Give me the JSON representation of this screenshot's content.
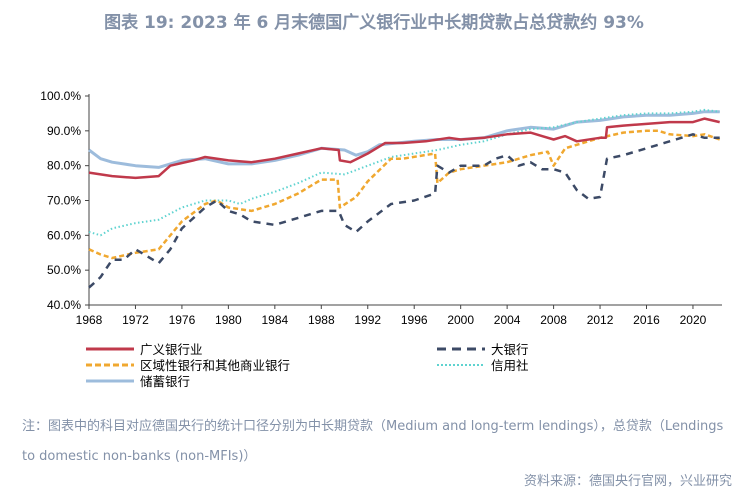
{
  "title": "图表 19: 2023 年 6 月末德国广义银行业中长期贷款占总贷款约 93%",
  "note": "注：图表中的科目对应德国央行的统计口径分别为中长期贷款（Medium and long-term lendings），总贷款（Lendings to domestic non-banks (non-MFIs)）",
  "source": "资料来源：德国央行官网，兴业研究",
  "chart_data": {
    "type": "line",
    "title": "图表 19: 2023 年 6 月末德国广义银行业中长期贷款占总贷款约 93%",
    "xlabel": "",
    "ylabel": "",
    "xlim": [
      1968,
      2022.5
    ],
    "ylim": [
      40,
      100
    ],
    "xticks": [
      "1968",
      "1972",
      "1976",
      "1980",
      "1984",
      "1988",
      "1992",
      "1996",
      "2000",
      "2004",
      "2008",
      "2012",
      "2016",
      "2020"
    ],
    "yticks": [
      "40.0%",
      "50.0%",
      "60.0%",
      "70.0%",
      "80.0%",
      "90.0%",
      "100.0%"
    ],
    "grid": false,
    "legend_position": "bottom",
    "series": [
      {
        "name": "广义银行业",
        "color": "#c0394b",
        "style": "solid",
        "x": [
          1968,
          1970,
          1972,
          1974,
          1975,
          1977,
          1978,
          1980,
          1982,
          1984,
          1986,
          1988,
          1989.5,
          1989.6,
          1990.5,
          1992,
          1993.5,
          1995,
          1997,
          1999,
          2000,
          2002,
          2004,
          2006,
          2007,
          2008,
          2009,
          2010,
          2012,
          2012.5,
          2012.6,
          2014,
          2016,
          2018,
          2020,
          2021,
          2022.3
        ],
        "y": [
          78,
          77,
          76.5,
          77,
          80,
          81.5,
          82.5,
          81.5,
          81,
          82,
          83.5,
          85,
          84.5,
          81.5,
          81,
          83.5,
          86.5,
          86.5,
          87,
          88,
          87.5,
          88,
          89,
          89.5,
          88.5,
          87.5,
          88.5,
          87,
          88,
          88,
          91,
          91.5,
          92,
          92.5,
          92.5,
          93.5,
          92.5
        ]
      },
      {
        "name": "大银行",
        "color": "#3c4a66",
        "style": "dash-long",
        "x": [
          1968,
          1969,
          1970,
          1971,
          1972,
          1973,
          1974,
          1975,
          1976,
          1978,
          1979,
          1980,
          1981,
          1982,
          1984,
          1986,
          1988,
          1989.5,
          1990,
          1991,
          1992,
          1994,
          1996,
          1997.8,
          1998,
          1999,
          2000,
          2002,
          2003,
          2004,
          2005,
          2006,
          2007,
          2008,
          2009,
          2010,
          2011,
          2012,
          2012.6,
          2014,
          2016,
          2018,
          2020,
          2021,
          2022.3
        ],
        "y": [
          45,
          48,
          53,
          53,
          56,
          54,
          52,
          56,
          62,
          68,
          70,
          67,
          66,
          64,
          63,
          65,
          67,
          67,
          63,
          61,
          64,
          69,
          70,
          72,
          80,
          78,
          80,
          80,
          82,
          83,
          80,
          81,
          79,
          79,
          78,
          73,
          70.5,
          71,
          82,
          83,
          85,
          87,
          89,
          88,
          88
        ]
      },
      {
        "name": "区域性银行和其他商业银行",
        "color": "#f0a830",
        "style": "dash",
        "x": [
          1968,
          1969,
          1970,
          1972,
          1974,
          1976,
          1978,
          1979,
          1980,
          1982,
          1984,
          1986,
          1988,
          1989.4,
          1989.6,
          1991,
          1992,
          1994,
          1995,
          1997.8,
          1998,
          1999,
          2000,
          2002,
          2004,
          2006,
          2007.5,
          2008,
          2009,
          2010,
          2012,
          2014,
          2016,
          2017,
          2018,
          2020,
          2021,
          2022.3
        ],
        "y": [
          56,
          54.5,
          53.5,
          55,
          56,
          64,
          69,
          70,
          68,
          67,
          69,
          72,
          76,
          76,
          68,
          71,
          75.5,
          82,
          82,
          83.5,
          75,
          78,
          79,
          80,
          81,
          83,
          84,
          80,
          85,
          86,
          88,
          89.5,
          90,
          90,
          89,
          88.5,
          89,
          87.5
        ]
      },
      {
        "name": "信用社",
        "color": "#5fd3d0",
        "style": "dot",
        "x": [
          1968,
          1969,
          1970,
          1972,
          1974,
          1976,
          1978,
          1980,
          1981,
          1982,
          1984,
          1986,
          1988,
          1990,
          1992,
          1994,
          1996,
          1998,
          2000,
          2002,
          2004,
          2006,
          2008,
          2010,
          2012,
          2014,
          2016,
          2018,
          2020,
          2021,
          2022.3
        ],
        "y": [
          61,
          60,
          62,
          63.5,
          64.5,
          68,
          70,
          70,
          69,
          70.5,
          72.5,
          75,
          78,
          77.5,
          80,
          82.5,
          83.5,
          84.5,
          86,
          87,
          89,
          90.5,
          91,
          92.5,
          93.5,
          94.5,
          95,
          95,
          95.5,
          96,
          95.5
        ]
      },
      {
        "name": "储蓄银行",
        "color": "#9dbcdc",
        "style": "solid-thick",
        "x": [
          1968,
          1969,
          1970,
          1972,
          1974,
          1976,
          1978,
          1980,
          1982,
          1984,
          1986,
          1988,
          1990,
          1991,
          1992,
          1993,
          1996,
          1998,
          2000,
          2002,
          2004,
          2006,
          2008,
          2010,
          2012,
          2014,
          2016,
          2018,
          2020,
          2021,
          2022.3
        ],
        "y": [
          84.5,
          82,
          81,
          80,
          79.5,
          81.5,
          82,
          80.5,
          80.5,
          81.5,
          83,
          85,
          84.5,
          83,
          84,
          86,
          87,
          87.5,
          87.5,
          88,
          90,
          91,
          90.5,
          92.5,
          93,
          94,
          94.5,
          94.5,
          95,
          95.5,
          95.5
        ]
      }
    ]
  }
}
